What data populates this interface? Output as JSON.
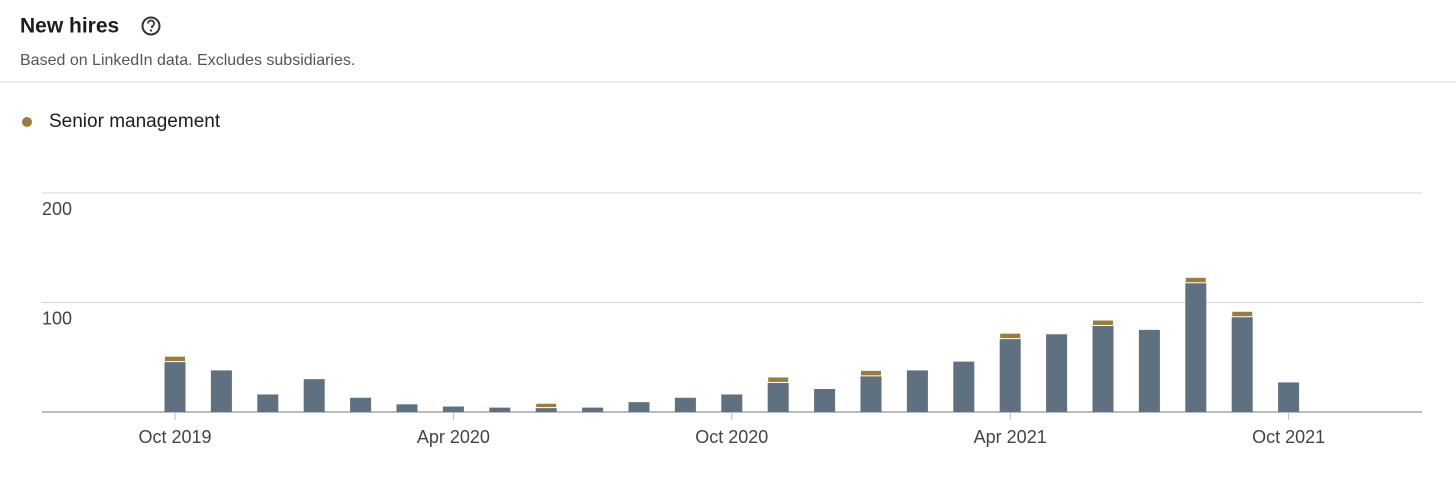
{
  "chart_data": {
    "type": "bar",
    "stacked": true,
    "title": "New hires",
    "subtitle": "Based on LinkedIn data. Excludes subsidiaries.",
    "categories": [
      "Oct 2019",
      null,
      null,
      null,
      null,
      null,
      "Apr 2020",
      null,
      null,
      null,
      null,
      null,
      "Oct 2020",
      null,
      null,
      null,
      null,
      null,
      "Apr 2021",
      null,
      null,
      null,
      null,
      null,
      "Oct 2021"
    ],
    "series": [
      {
        "color": "#5f7080",
        "values": [
          46,
          38,
          16,
          30,
          13,
          7,
          5,
          4,
          4,
          4,
          9,
          13,
          16,
          27,
          21,
          33,
          38,
          46,
          67,
          71,
          79,
          75,
          118,
          87,
          27
        ]
      },
      {
        "name": "Senior management",
        "color": "#9a7d3a",
        "values": [
          5,
          0,
          0,
          0,
          0,
          0,
          0,
          0,
          4,
          0,
          0,
          0,
          0,
          5,
          0,
          5,
          0,
          0,
          5,
          0,
          5,
          0,
          5,
          5,
          0
        ]
      }
    ],
    "ylim": [
      0,
      200
    ],
    "yticks": [
      100,
      200
    ],
    "grid": true
  }
}
